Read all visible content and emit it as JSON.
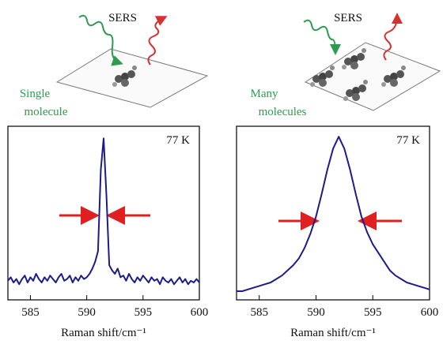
{
  "illustrations": [
    {
      "label": "SERS",
      "caption": [
        "Single",
        "molecule"
      ]
    },
    {
      "label": "SERS",
      "caption": [
        "Many",
        "molecules"
      ]
    }
  ],
  "chart_data": [
    {
      "type": "line",
      "annotation": "77 K",
      "x_label": "Raman shift/cm⁻¹",
      "x": [
        583,
        583.25,
        583.5,
        583.75,
        584,
        584.25,
        584.5,
        584.75,
        585,
        585.25,
        585.5,
        585.75,
        586,
        586.25,
        586.5,
        586.75,
        587,
        587.25,
        587.5,
        587.75,
        588,
        588.25,
        588.5,
        588.75,
        589,
        589.25,
        589.5,
        589.75,
        590,
        590.25,
        590.5,
        590.75,
        591,
        591.25,
        591.5,
        591.75,
        592,
        592.25,
        592.5,
        592.75,
        593,
        593.25,
        593.5,
        593.75,
        594,
        594.25,
        594.5,
        594.75,
        595,
        595.25,
        595.5,
        595.75,
        596,
        596.25,
        596.5,
        596.75,
        597,
        597.25,
        597.5,
        597.75,
        598,
        598.25,
        598.5,
        598.75,
        599,
        599.25,
        599.5,
        599.75,
        600
      ],
      "series": [
        {
          "color": "#1c1c8a",
          "values": [
            0.11,
            0.13,
            0.1,
            0.12,
            0.09,
            0.12,
            0.14,
            0.1,
            0.13,
            0.11,
            0.15,
            0.12,
            0.1,
            0.13,
            0.11,
            0.14,
            0.12,
            0.1,
            0.13,
            0.15,
            0.11,
            0.12,
            0.14,
            0.1,
            0.13,
            0.11,
            0.14,
            0.12,
            0.13,
            0.15,
            0.18,
            0.22,
            0.28,
            0.75,
            0.93,
            0.6,
            0.2,
            0.17,
            0.15,
            0.18,
            0.13,
            0.14,
            0.11,
            0.15,
            0.12,
            0.1,
            0.13,
            0.11,
            0.14,
            0.12,
            0.1,
            0.13,
            0.11,
            0.12,
            0.09,
            0.13,
            0.11,
            0.1,
            0.12,
            0.09,
            0.11,
            0.13,
            0.1,
            0.12,
            0.09,
            0.11,
            0.1,
            0.12,
            0.1
          ]
        }
      ],
      "xlim": [
        583,
        600
      ],
      "ylim": [
        0,
        1
      ],
      "xticks": [
        585,
        590,
        595,
        600
      ]
    },
    {
      "type": "line",
      "annotation": "77 K",
      "x_label": "Raman shift/cm⁻¹",
      "x": [
        583,
        583.5,
        584,
        584.5,
        585,
        585.5,
        586,
        586.5,
        587,
        587.5,
        588,
        588.5,
        589,
        589.5,
        590,
        590.5,
        591,
        591.5,
        592,
        592.5,
        593,
        593.5,
        594,
        594.5,
        595,
        595.5,
        596,
        596.5,
        597,
        597.5,
        598,
        598.5,
        599,
        599.5,
        600
      ],
      "series": [
        {
          "color": "#1c1c8a",
          "values": [
            0.05,
            0.05,
            0.06,
            0.07,
            0.08,
            0.09,
            0.1,
            0.12,
            0.14,
            0.17,
            0.2,
            0.24,
            0.3,
            0.38,
            0.48,
            0.61,
            0.75,
            0.87,
            0.94,
            0.87,
            0.75,
            0.61,
            0.48,
            0.39,
            0.32,
            0.27,
            0.22,
            0.17,
            0.14,
            0.12,
            0.1,
            0.09,
            0.08,
            0.07,
            0.06
          ]
        }
      ],
      "xlim": [
        583,
        600
      ],
      "ylim": [
        0,
        1
      ],
      "xticks": [
        585,
        590,
        595,
        600
      ]
    }
  ]
}
